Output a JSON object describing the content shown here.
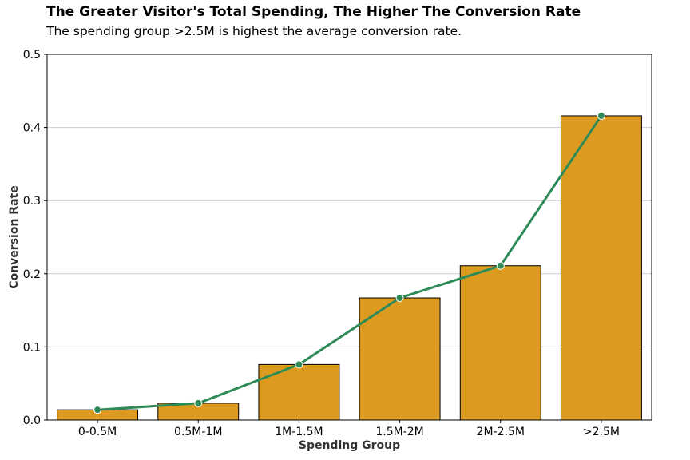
{
  "chart_data": {
    "type": "bar",
    "title": "The Greater Visitor's Total Spending, The Higher The Conversion Rate",
    "subtitle": "The spending group >2.5M is highest the average conversion rate.",
    "xlabel": "Spending Group",
    "ylabel": "Conversion Rate",
    "categories": [
      "0-0.5M",
      "0.5M-1M",
      "1M-1.5M",
      "1.5M-2M",
      "2M-2.5M",
      ">2.5M"
    ],
    "values": [
      0.014,
      0.023,
      0.076,
      0.167,
      0.211,
      0.416
    ],
    "line_values": [
      0.014,
      0.023,
      0.076,
      0.167,
      0.211,
      0.416
    ],
    "ylim": [
      0,
      0.5
    ],
    "yticks": [
      "0.0",
      "0.1",
      "0.2",
      "0.3",
      "0.4",
      "0.5"
    ],
    "grid": "horizontal",
    "legend": "none",
    "colors": {
      "bar": "#dd9a20",
      "bar_edge": "#000000",
      "line": "#2e8b57",
      "marker_edge": "#ffffff",
      "grid": "#cccccc"
    }
  }
}
